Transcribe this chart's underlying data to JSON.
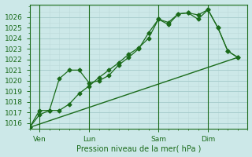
{
  "xlabel": "Pression niveau de la mer( hPa )",
  "background_color": "#cce8e8",
  "grid_color_major": "#a8cece",
  "grid_color_minor": "#bcdada",
  "line_color": "#1a6b1a",
  "ylim": [
    1015.5,
    1027.2
  ],
  "xlim": [
    0,
    22
  ],
  "xtick_positions": [
    1,
    6,
    13,
    18
  ],
  "xtick_labels": [
    "Ven",
    "Lun",
    "Sam",
    "Dim"
  ],
  "ytick_vals": [
    1016,
    1017,
    1018,
    1019,
    1020,
    1021,
    1022,
    1023,
    1024,
    1025,
    1026
  ],
  "series1_x": [
    0,
    1,
    2,
    3,
    4,
    5,
    6,
    7,
    8,
    9,
    10,
    11,
    12,
    13,
    14,
    15,
    16,
    17,
    18,
    19,
    20,
    21
  ],
  "series1_y": [
    1015.6,
    1016.8,
    1017.2,
    1017.2,
    1017.8,
    1018.8,
    1019.5,
    1020.3,
    1021.0,
    1021.7,
    1022.5,
    1023.1,
    1024.0,
    1025.8,
    1025.3,
    1026.3,
    1026.4,
    1026.2,
    1026.7,
    1025.0,
    1022.8,
    1022.2
  ],
  "series2_x": [
    0,
    1,
    2,
    3,
    4,
    5,
    6,
    7,
    8,
    9,
    10,
    11,
    12,
    13,
    14,
    15,
    16,
    17,
    18,
    19,
    20,
    21
  ],
  "series2_y": [
    1015.6,
    1017.2,
    1017.2,
    1020.2,
    1021.0,
    1021.0,
    1019.8,
    1020.0,
    1020.5,
    1021.5,
    1022.2,
    1023.0,
    1024.5,
    1025.8,
    1025.5,
    1026.3,
    1026.4,
    1025.8,
    1026.7,
    1025.0,
    1022.8,
    1022.2
  ],
  "series3_x": [
    0,
    21
  ],
  "series3_y": [
    1015.6,
    1022.2
  ],
  "vline_positions": [
    1,
    6,
    13,
    18
  ],
  "marker": "D",
  "markersize": 2.5,
  "linewidth": 1.0,
  "xlabel_fontsize": 7,
  "tick_fontsize": 6.5
}
